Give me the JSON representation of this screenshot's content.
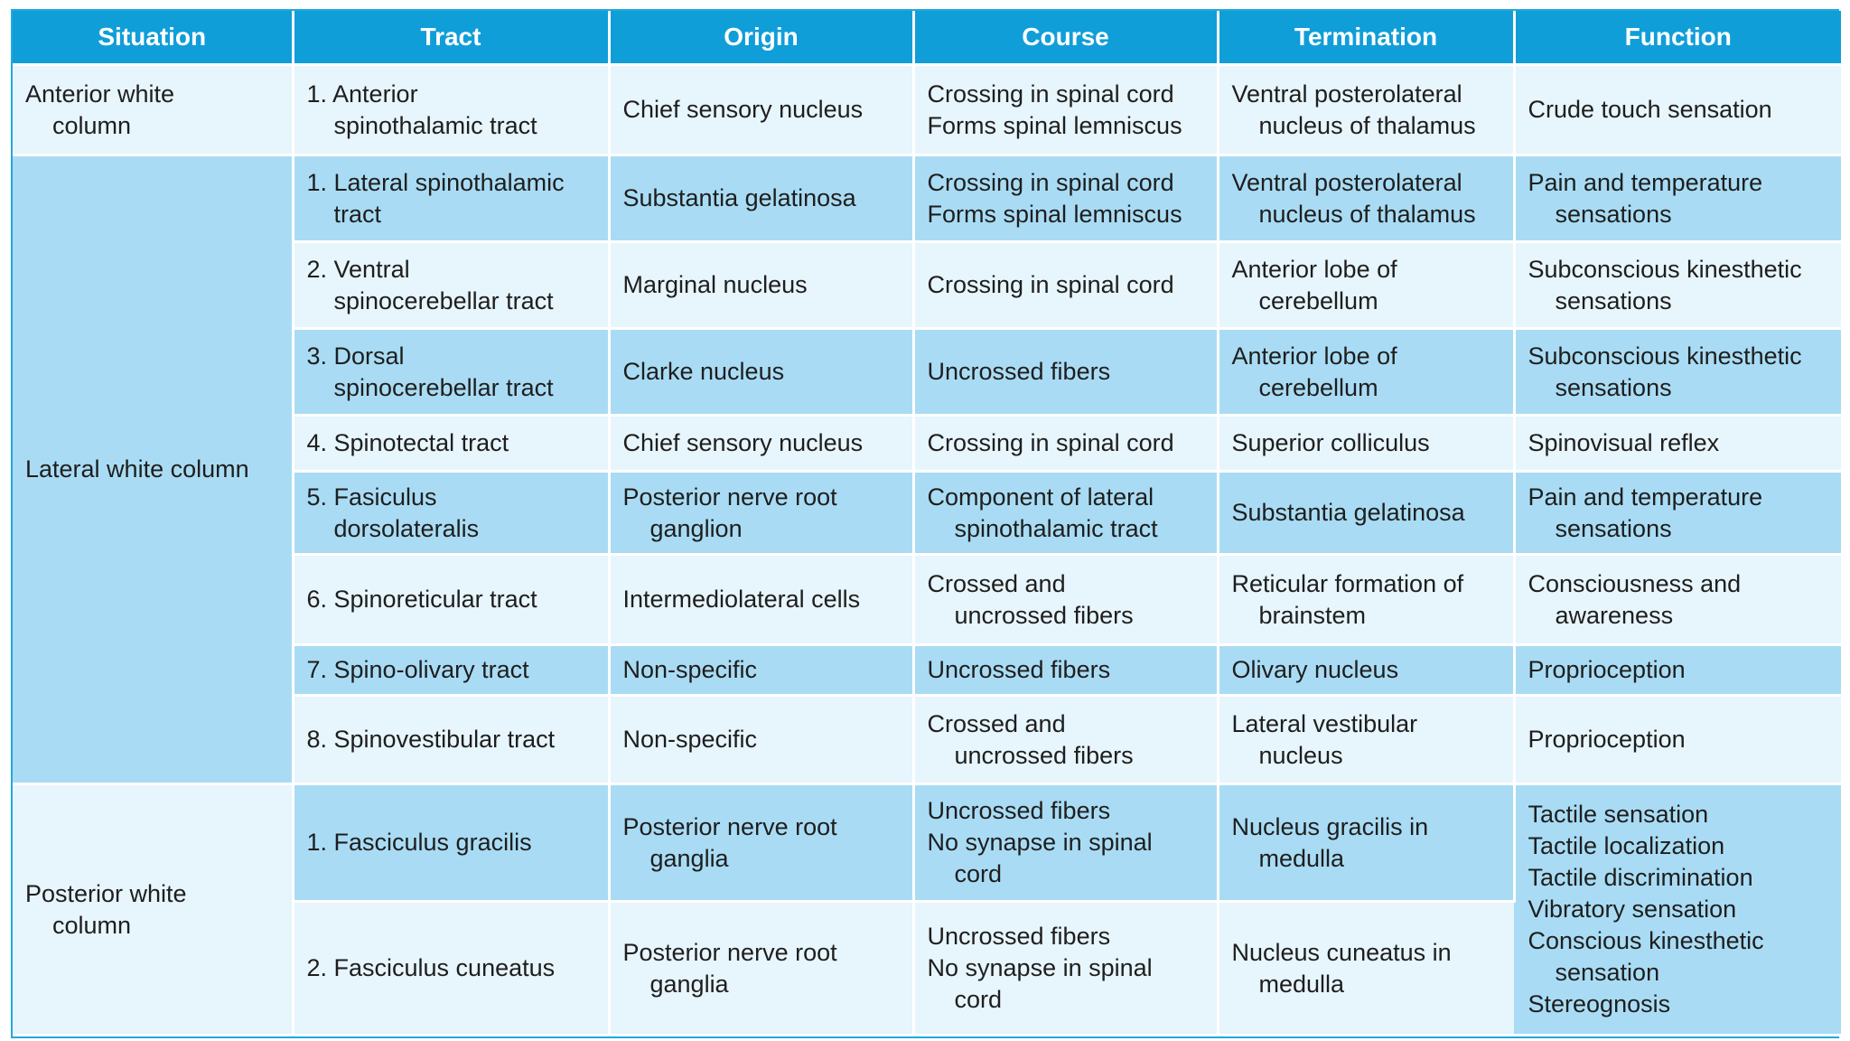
{
  "colors": {
    "header_bg": "#109ed9",
    "row_light": "#e7f5fc",
    "row_dark": "#a9dcf4",
    "border": "#22a8dd"
  },
  "headers": [
    "Situation",
    "Tract",
    "Origin",
    "Course",
    "Termination",
    "Function"
  ],
  "situations": {
    "anterior": [
      "Anterior white",
      "column"
    ],
    "lateral": [
      "Lateral white column"
    ],
    "posterior": [
      "Posterior white",
      "column"
    ]
  },
  "rows": [
    {
      "tract": [
        "1. Anterior",
        "spinothalamic tract"
      ],
      "origin": [
        "Chief sensory nucleus"
      ],
      "course": [
        "Crossing in spinal cord",
        "Forms spinal lemniscus"
      ],
      "termination": [
        "Ventral posterolateral",
        "nucleus of thalamus"
      ],
      "function": [
        "Crude touch sensation"
      ]
    },
    {
      "tract": [
        "1. Lateral spinothalamic",
        "tract"
      ],
      "origin": [
        "Substantia gelatinosa"
      ],
      "course": [
        "Crossing in spinal cord",
        "Forms spinal lemniscus"
      ],
      "termination": [
        "Ventral posterolateral",
        "nucleus of thalamus"
      ],
      "function": [
        "Pain and temperature",
        "sensations"
      ]
    },
    {
      "tract": [
        "2. Ventral",
        "spinocerebellar tract"
      ],
      "origin": [
        "Marginal nucleus"
      ],
      "course": [
        "Crossing in spinal cord"
      ],
      "termination": [
        "Anterior lobe of",
        "cerebellum"
      ],
      "function": [
        "Subconscious kinesthetic",
        "sensations"
      ]
    },
    {
      "tract": [
        "3. Dorsal",
        "spinocerebellar tract"
      ],
      "origin": [
        "Clarke nucleus"
      ],
      "course": [
        "Uncrossed fibers"
      ],
      "termination": [
        "Anterior lobe of",
        "cerebellum"
      ],
      "function": [
        "Subconscious kinesthetic",
        "sensations"
      ]
    },
    {
      "tract": [
        "4. Spinotectal tract"
      ],
      "origin": [
        "Chief sensory nucleus"
      ],
      "course": [
        "Crossing in spinal cord"
      ],
      "termination": [
        "Superior colliculus"
      ],
      "function": [
        "Spinovisual reflex"
      ]
    },
    {
      "tract": [
        "5. Fasiculus",
        "dorsolateralis"
      ],
      "origin": [
        "Posterior nerve root",
        "ganglion"
      ],
      "course": [
        "Component of lateral",
        "spinothalamic tract"
      ],
      "termination": [
        "Substantia gelatinosa"
      ],
      "function": [
        "Pain and temperature",
        "sensations"
      ]
    },
    {
      "tract": [
        "6. Spinoreticular tract"
      ],
      "origin": [
        "Intermediolateral cells"
      ],
      "course": [
        "Crossed and",
        "uncrossed fibers"
      ],
      "termination": [
        "Reticular formation of",
        "brainstem"
      ],
      "function": [
        "Consciousness and",
        "awareness"
      ]
    },
    {
      "tract": [
        "7. Spino-olivary tract"
      ],
      "origin": [
        "Non-specific"
      ],
      "course": [
        "Uncrossed fibers"
      ],
      "termination": [
        "Olivary nucleus"
      ],
      "function": [
        "Proprioception"
      ]
    },
    {
      "tract": [
        "8. Spinovestibular tract"
      ],
      "origin": [
        "Non-specific"
      ],
      "course": [
        "Crossed and",
        "uncrossed fibers"
      ],
      "termination": [
        "Lateral vestibular",
        "nucleus"
      ],
      "function": [
        "Proprioception"
      ]
    },
    {
      "tract": [
        "1. Fasciculus gracilis"
      ],
      "origin": [
        "Posterior nerve root",
        "ganglia"
      ],
      "course": [
        "Uncrossed fibers",
        "No synapse in spinal",
        "cord"
      ],
      "termination": [
        "Nucleus gracilis in",
        "medulla"
      ]
    },
    {
      "tract": [
        "2. Fasciculus cuneatus"
      ],
      "origin": [
        "Posterior nerve root",
        "ganglia"
      ],
      "course": [
        "Uncrossed fibers",
        "No synapse in spinal",
        "cord"
      ],
      "termination": [
        "Nucleus cuneatus in",
        "medulla"
      ]
    }
  ],
  "posterior_function": [
    "Tactile sensation",
    "Tactile localization",
    "Tactile discrimination",
    "Vibratory sensation",
    "Conscious kinesthetic",
    "sensation",
    "Stereognosis"
  ]
}
